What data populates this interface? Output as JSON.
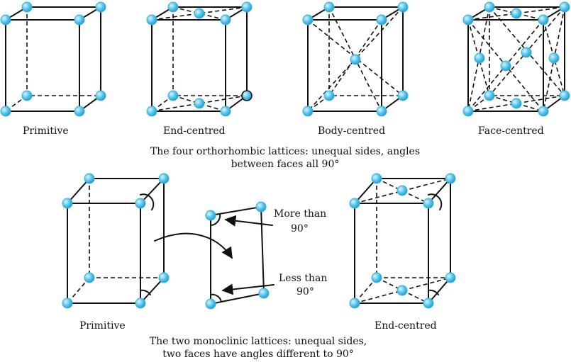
{
  "orthorhombic": {
    "labels": [
      "Primitive",
      "End-centred",
      "Body-centred",
      "Face-centred"
    ],
    "caption_line1": "The four orthorhombic lattices: unequal sides, angles",
    "caption_line2": "between faces all 90°"
  },
  "monoclinic": {
    "labels": [
      "Primitive",
      "End-centred"
    ],
    "angle_top": [
      "More than",
      "90°"
    ],
    "angle_bottom": [
      "Less than",
      "90°"
    ],
    "caption_line1": "The two monoclinic lattices: unequal sides,",
    "caption_line2": "two faces have angles different to 90°"
  },
  "colors": {
    "atom": "#5cc8ee",
    "atom_highlight": "#c8f0ff",
    "line": "#111111"
  }
}
